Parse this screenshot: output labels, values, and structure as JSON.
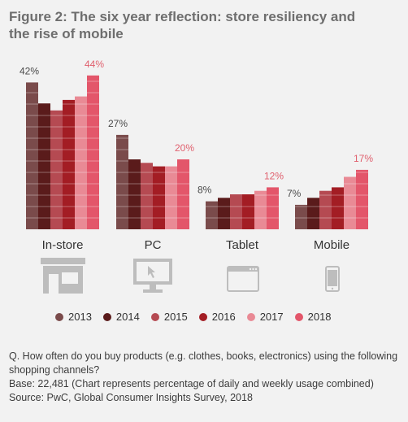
{
  "colors": {
    "2013": "#7a4b4b",
    "2014": "#5a1b1b",
    "2015": "#b54a52",
    "2016": "#a31d24",
    "2017": "#e98a95",
    "2018": "#e3566a",
    "label_dark": "#4a4a4a",
    "label_accent": "#e0606e",
    "icon": "#bdbdbd"
  },
  "chart_data": {
    "type": "bar",
    "title": "Figure 2: The six year reflection: store resiliency and the rise of mobile",
    "categories": [
      "In-store",
      "PC",
      "Tablet",
      "Mobile"
    ],
    "series": [
      {
        "name": "2013",
        "values": [
          42,
          27,
          8,
          7
        ]
      },
      {
        "name": "2014",
        "values": [
          36,
          20,
          9,
          9
        ]
      },
      {
        "name": "2015",
        "values": [
          34,
          19,
          10,
          11
        ]
      },
      {
        "name": "2016",
        "values": [
          37,
          18,
          10,
          12
        ]
      },
      {
        "name": "2017",
        "values": [
          38,
          18,
          11,
          15
        ]
      },
      {
        "name": "2018",
        "values": [
          44,
          20,
          12,
          17
        ]
      }
    ],
    "data_labels": [
      {
        "category": "In-store",
        "first": "42%",
        "last": "44%"
      },
      {
        "category": "PC",
        "first": "27%",
        "last": "20%"
      },
      {
        "category": "Tablet",
        "first": "8%",
        "last": "12%"
      },
      {
        "category": "Mobile",
        "first": "7%",
        "last": "17%"
      }
    ],
    "legend_position": "bottom",
    "grid": false,
    "icons": [
      "store-icon",
      "pc-icon",
      "tablet-icon",
      "mobile-icon"
    ]
  },
  "legend": [
    {
      "label": "2013",
      "color": "#7a4b4b"
    },
    {
      "label": "2014",
      "color": "#5a1b1b"
    },
    {
      "label": "2015",
      "color": "#b54a52"
    },
    {
      "label": "2016",
      "color": "#a31d24"
    },
    {
      "label": "2017",
      "color": "#e98a95"
    },
    {
      "label": "2018",
      "color": "#e3566a"
    }
  ],
  "notes": {
    "question": "Q. How often do you buy products (e.g. clothes, books, electronics) using the following shopping channels?",
    "base": "Base: 22,481 (Chart represents percentage of daily and weekly usage combined)",
    "source": "Source: PwC, Global Consumer Insights Survey, 2018"
  }
}
